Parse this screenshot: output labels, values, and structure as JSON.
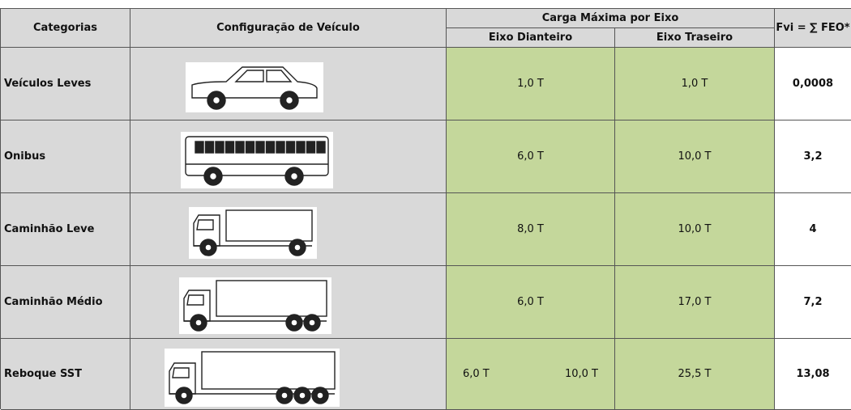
{
  "table": {
    "header": {
      "category": "Categorias",
      "configuration": "Configuração de Veículo",
      "load_group": "Carga Máxima por Eixo",
      "front_axle": "Eixo Dianteiro",
      "rear_axle": "Eixo Traseiro",
      "fvi": "Fvi = ∑ FEO*"
    },
    "rows": [
      {
        "category": "Veículos Leves",
        "front_axle": [
          "1,0 T"
        ],
        "rear_axle": "1,0 T",
        "fvi": "0,0008"
      },
      {
        "category": "Onibus",
        "front_axle": [
          "6,0 T"
        ],
        "rear_axle": "10,0 T",
        "fvi": "3,2"
      },
      {
        "category": "Caminhão Leve",
        "front_axle": [
          "8,0 T"
        ],
        "rear_axle": "10,0 T",
        "fvi": "4"
      },
      {
        "category": "Caminhão Médio",
        "front_axle": [
          "6,0 T"
        ],
        "rear_axle": "17,0 T",
        "fvi": "7,2"
      },
      {
        "category": "Reboque SST",
        "front_axle": [
          "6,0 T",
          "10,0 T"
        ],
        "rear_axle": "25,5 T",
        "fvi": "13,08"
      }
    ]
  }
}
